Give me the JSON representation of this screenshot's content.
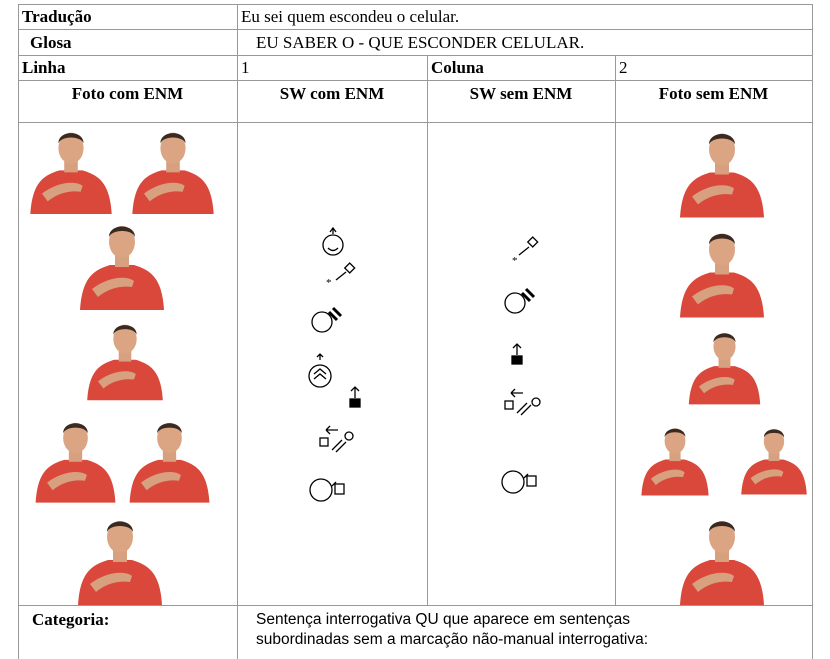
{
  "table": {
    "translation": {
      "label": "Tradução",
      "text": "Eu sei quem escondeu o celular."
    },
    "gloss": {
      "label": "Glosa",
      "text": "EU SABER O - QUE ESCONDER CELULAR."
    },
    "position": {
      "row_label": "Linha",
      "row": "1",
      "column_label": "Coluna",
      "column": "2"
    },
    "headers": [
      "Foto com ENM",
      "SW com ENM",
      "SW sem ENM",
      "Foto sem ENM"
    ],
    "category": {
      "label": "Categoria:",
      "text_lines": [
        "Sentença interrogativa QU que aparece em sentenças",
        "subordinadas sem a marcação não-manual interrogativa:"
      ]
    }
  }
}
